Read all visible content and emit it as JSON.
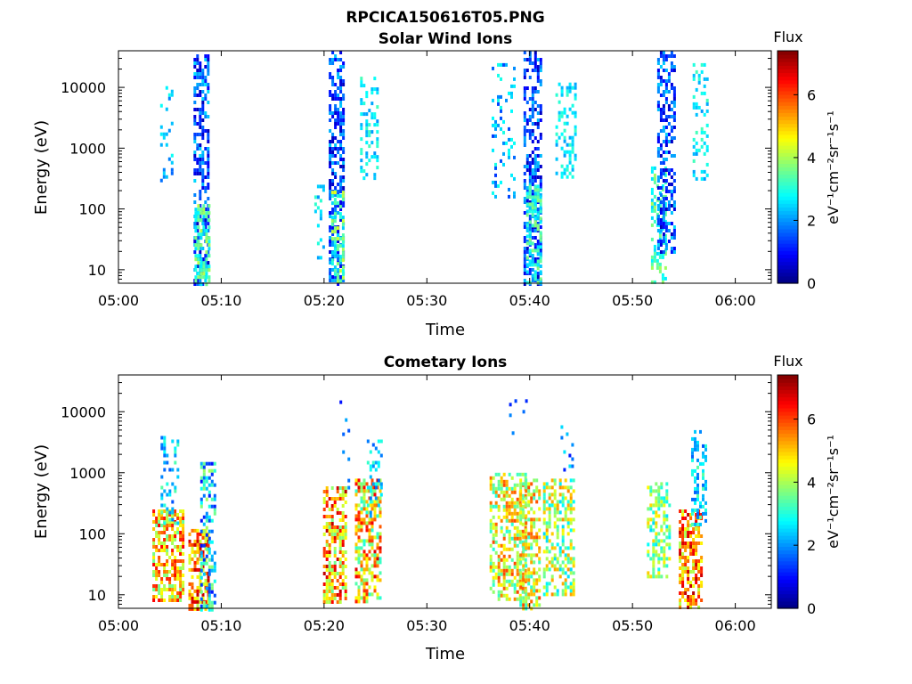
{
  "figure_title": "RPCICA150616T05.PNG",
  "colors": {
    "colormap": [
      "#00007f",
      "#0000ff",
      "#007fff",
      "#00ffff",
      "#7fff7f",
      "#ffff00",
      "#ff7f00",
      "#ff0000",
      "#7f0000"
    ]
  },
  "chart_data": [
    {
      "type": "heatmap",
      "title": "Solar Wind Ions",
      "xlabel": "Time",
      "ylabel": "Energy (eV)",
      "x_ticks": [
        "05:00",
        "05:10",
        "05:20",
        "05:30",
        "05:40",
        "05:50",
        "06:00"
      ],
      "x_range_minutes": [
        0,
        63.5
      ],
      "y_scale": "log",
      "y_ticks": [
        "10",
        "100",
        "1000",
        "10000"
      ],
      "y_range": [
        6,
        40000
      ],
      "colorbar": {
        "title": "Flux",
        "label": "eV⁻¹cm⁻²sr⁻¹s⁻¹",
        "ticks": [
          "0",
          "2",
          "4",
          "6"
        ],
        "range": [
          0,
          7.4
        ]
      },
      "clusters": [
        {
          "t": 4.6,
          "width": 1.1,
          "e_min": 300,
          "e_max": 12000,
          "flux": [
            1.5,
            3.0
          ],
          "density": 0.22
        },
        {
          "t": 8.0,
          "width": 1.4,
          "e_min": 6,
          "e_max": 35000,
          "flux": [
            0.4,
            2.6
          ],
          "density": 0.55
        },
        {
          "t": 8.1,
          "width": 1.4,
          "e_min": 6,
          "e_max": 120,
          "flux": [
            2.5,
            4.2
          ],
          "density": 0.55
        },
        {
          "t": 19.5,
          "width": 0.9,
          "e_min": 15,
          "e_max": 250,
          "flux": [
            2.0,
            3.2
          ],
          "density": 0.25
        },
        {
          "t": 21.2,
          "width": 1.5,
          "e_min": 6,
          "e_max": 40000,
          "flux": [
            0.4,
            2.4
          ],
          "density": 0.55
        },
        {
          "t": 21.3,
          "width": 1.2,
          "e_min": 6,
          "e_max": 200,
          "flux": [
            2.4,
            4.5
          ],
          "density": 0.55
        },
        {
          "t": 24.3,
          "width": 1.6,
          "e_min": 300,
          "e_max": 15000,
          "flux": [
            2.0,
            3.3
          ],
          "density": 0.32
        },
        {
          "t": 37.4,
          "width": 2.2,
          "e_min": 150,
          "e_max": 25000,
          "flux": [
            1.3,
            3.0
          ],
          "density": 0.2
        },
        {
          "t": 40.2,
          "width": 1.6,
          "e_min": 6,
          "e_max": 40000,
          "flux": [
            0.4,
            2.4
          ],
          "density": 0.55
        },
        {
          "t": 40.3,
          "width": 1.3,
          "e_min": 6,
          "e_max": 250,
          "flux": [
            2.3,
            3.8
          ],
          "density": 0.55
        },
        {
          "t": 43.5,
          "width": 2.0,
          "e_min": 300,
          "e_max": 12000,
          "flux": [
            2.0,
            3.2
          ],
          "density": 0.3
        },
        {
          "t": 52.5,
          "width": 1.4,
          "e_min": 6,
          "e_max": 500,
          "flux": [
            2.5,
            4.0
          ],
          "density": 0.4
        },
        {
          "t": 53.2,
          "width": 1.6,
          "e_min": 20,
          "e_max": 40000,
          "flux": [
            0.4,
            2.5
          ],
          "density": 0.5
        },
        {
          "t": 56.5,
          "width": 1.3,
          "e_min": 300,
          "e_max": 25000,
          "flux": [
            2.0,
            3.3
          ],
          "density": 0.3
        }
      ]
    },
    {
      "type": "heatmap",
      "title": "Cometary Ions",
      "xlabel": "Time",
      "ylabel": "Energy (eV)",
      "x_ticks": [
        "05:00",
        "05:10",
        "05:20",
        "05:30",
        "05:40",
        "05:50",
        "06:00"
      ],
      "x_range_minutes": [
        0,
        63.5
      ],
      "y_scale": "log",
      "y_ticks": [
        "10",
        "100",
        "1000",
        "10000"
      ],
      "y_range": [
        6,
        40000
      ],
      "colorbar": {
        "title": "Flux",
        "label": "eV⁻¹cm⁻²sr⁻¹s⁻¹",
        "ticks": [
          "0",
          "2",
          "4",
          "6"
        ],
        "range": [
          0,
          7.4
        ]
      },
      "clusters": [
        {
          "t": 4.8,
          "width": 3.0,
          "e_min": 8,
          "e_max": 250,
          "flux": [
            3.5,
            6.5
          ],
          "density": 0.65
        },
        {
          "t": 5.0,
          "width": 1.8,
          "e_min": 150,
          "e_max": 4000,
          "flux": [
            1.5,
            3.5
          ],
          "density": 0.3
        },
        {
          "t": 7.8,
          "width": 2.0,
          "e_min": 6,
          "e_max": 120,
          "flux": [
            4.0,
            7.0
          ],
          "density": 0.7
        },
        {
          "t": 8.6,
          "width": 1.3,
          "e_min": 6,
          "e_max": 1500,
          "flux": [
            1.0,
            4.0
          ],
          "density": 0.45
        },
        {
          "t": 21.0,
          "width": 2.2,
          "e_min": 8,
          "e_max": 600,
          "flux": [
            3.5,
            7.0
          ],
          "density": 0.6
        },
        {
          "t": 22.0,
          "width": 1.0,
          "e_min": 500,
          "e_max": 20000,
          "flux": [
            1.0,
            2.2
          ],
          "density": 0.06
        },
        {
          "t": 24.2,
          "width": 2.4,
          "e_min": 8,
          "e_max": 800,
          "flux": [
            3.0,
            6.8
          ],
          "density": 0.6
        },
        {
          "t": 24.8,
          "width": 1.3,
          "e_min": 200,
          "e_max": 3500,
          "flux": [
            1.5,
            3.2
          ],
          "density": 0.3
        },
        {
          "t": 37.8,
          "width": 3.4,
          "e_min": 8,
          "e_max": 1000,
          "flux": [
            3.0,
            6.0
          ],
          "density": 0.55
        },
        {
          "t": 40.0,
          "width": 2.0,
          "e_min": 6,
          "e_max": 800,
          "flux": [
            3.0,
            6.0
          ],
          "density": 0.55
        },
        {
          "t": 39.0,
          "width": 2.0,
          "e_min": 3000,
          "e_max": 16000,
          "flux": [
            1.0,
            2.0
          ],
          "density": 0.05
        },
        {
          "t": 42.8,
          "width": 3.0,
          "e_min": 10,
          "e_max": 800,
          "flux": [
            2.5,
            5.5
          ],
          "density": 0.5
        },
        {
          "t": 43.6,
          "width": 1.2,
          "e_min": 600,
          "e_max": 6000,
          "flux": [
            1.0,
            2.6
          ],
          "density": 0.15
        },
        {
          "t": 52.5,
          "width": 2.2,
          "e_min": 20,
          "e_max": 700,
          "flux": [
            2.5,
            5.0
          ],
          "density": 0.45
        },
        {
          "t": 55.6,
          "width": 2.2,
          "e_min": 6,
          "e_max": 250,
          "flux": [
            4.0,
            7.0
          ],
          "density": 0.65
        },
        {
          "t": 56.4,
          "width": 1.4,
          "e_min": 150,
          "e_max": 5000,
          "flux": [
            1.5,
            3.5
          ],
          "density": 0.35
        }
      ]
    }
  ]
}
